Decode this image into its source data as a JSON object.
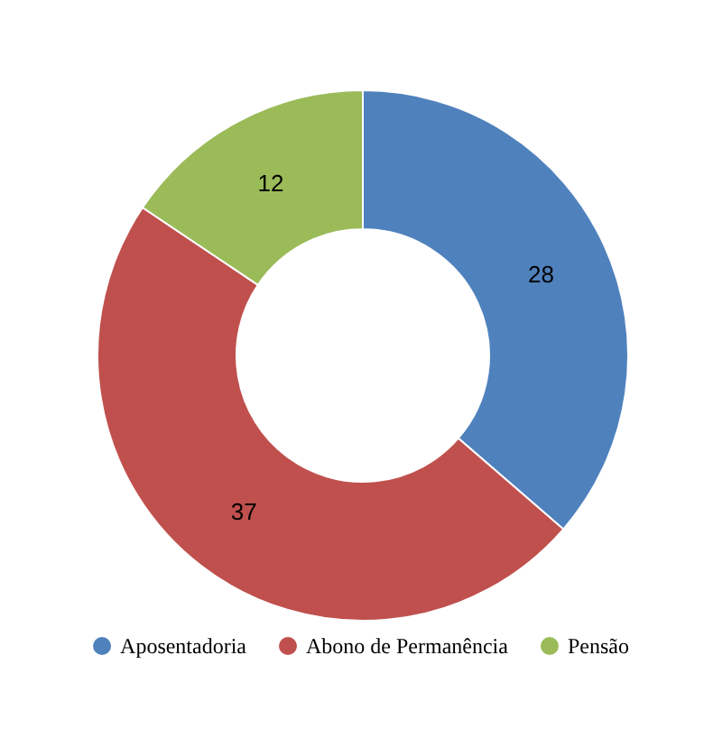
{
  "chart_data": {
    "type": "donut",
    "categories": [
      "Aposentadoria",
      "Abono de Permanência",
      "Pensão"
    ],
    "values": [
      28,
      37,
      12
    ],
    "colors": [
      "#4f81bd",
      "#c0504d",
      "#9bbb59"
    ],
    "data_labels": true,
    "legend": "bottom"
  }
}
